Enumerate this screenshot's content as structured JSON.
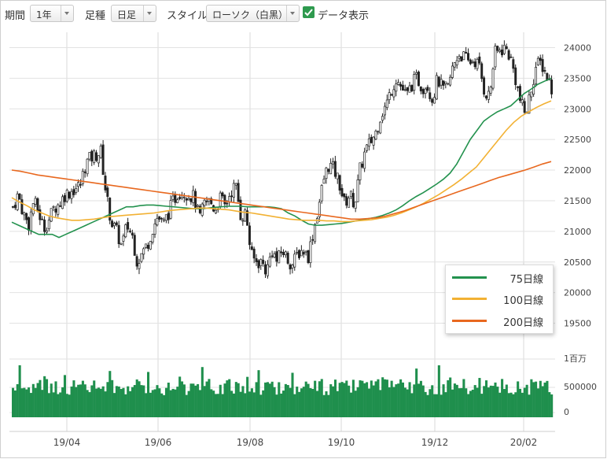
{
  "toolbar": {
    "period_label": "期間",
    "period_value": "1年",
    "candle_label": "足種",
    "candle_value": "日足",
    "style_label": "スタイル",
    "style_value": "ローソク（白黒）",
    "data_display_label": "データ表示",
    "data_display_checked": true
  },
  "chart_data": {
    "type": "candlestick",
    "x_tick_labels": [
      "19/04",
      "19/06",
      "19/08",
      "19/10",
      "19/12",
      "20/02"
    ],
    "price_axis": {
      "ticks": [
        19500,
        20000,
        20500,
        21000,
        21500,
        22000,
        22500,
        23000,
        23500,
        24000
      ],
      "range": [
        19250,
        24250
      ]
    },
    "volume_axis": {
      "tick_labels": [
        "1百万",
        "500000",
        "0"
      ]
    },
    "price_close": [
      21400,
      21600,
      21300,
      21100,
      21500,
      21300,
      21050,
      21200,
      21400,
      21450,
      21600,
      21650,
      21700,
      21750,
      22100,
      22200,
      22250,
      22300,
      21600,
      21150,
      21000,
      20750,
      21100,
      20950,
      20500,
      20650,
      20800,
      21050,
      21250,
      21100,
      21300,
      21500,
      21650,
      21650,
      21600,
      21550,
      21200,
      21450,
      21500,
      21350,
      21550,
      21400,
      21650,
      21750,
      21250,
      21300,
      20600,
      20500,
      20500,
      20350,
      20700,
      20500,
      20700,
      20550,
      20450,
      20650,
      20700,
      20600,
      21000,
      21400,
      21850,
      22100,
      22000,
      21800,
      21450,
      21600,
      21450,
      22000,
      22300,
      22450,
      22600,
      22900,
      23050,
      23300,
      23500,
      23350,
      23200,
      23400,
      23500,
      23350,
      23400,
      23150,
      23500,
      23300,
      23350,
      23700,
      23900,
      23850,
      23750,
      23800,
      23700,
      23300,
      23200,
      23900,
      23950,
      24000,
      23850,
      23500,
      23100,
      22900,
      23300,
      23700,
      23750,
      23550,
      23350
    ],
    "series": [
      {
        "name": "75日線",
        "color": "#23924e",
        "values": [
          21150,
          21100,
          21050,
          21000,
          20950,
          20950,
          20950,
          20900,
          20950,
          21000,
          21050,
          21100,
          21150,
          21200,
          21250,
          21300,
          21350,
          21400,
          21400,
          21420,
          21430,
          21430,
          21420,
          21410,
          21400,
          21390,
          21380,
          21370,
          21370,
          21380,
          21390,
          21400,
          21410,
          21410,
          21410,
          21400,
          21400,
          21400,
          21400,
          21390,
          21370,
          21300,
          21250,
          21180,
          21120,
          21100,
          21100,
          21110,
          21120,
          21130,
          21150,
          21170,
          21190,
          21210,
          21230,
          21260,
          21300,
          21350,
          21420,
          21500,
          21570,
          21630,
          21700,
          21770,
          21850,
          21950,
          22100,
          22300,
          22500,
          22650,
          22800,
          22880,
          22950,
          23000,
          23050,
          23150,
          23250,
          23320,
          23400,
          23450,
          23500
        ]
      },
      {
        "name": "100日線",
        "color": "#f2b133",
        "values": [
          21550,
          21480,
          21420,
          21350,
          21300,
          21250,
          21220,
          21200,
          21180,
          21180,
          21190,
          21200,
          21220,
          21240,
          21250,
          21260,
          21270,
          21280,
          21290,
          21300,
          21320,
          21340,
          21350,
          21360,
          21370,
          21380,
          21380,
          21370,
          21360,
          21350,
          21330,
          21310,
          21300,
          21280,
          21260,
          21240,
          21220,
          21200,
          21190,
          21180,
          21180,
          21180,
          21170,
          21170,
          21160,
          21160,
          21170,
          21180,
          21190,
          21210,
          21230,
          21260,
          21300,
          21350,
          21400,
          21460,
          21530,
          21600,
          21680,
          21760,
          21850,
          21950,
          22050,
          22200,
          22350,
          22500,
          22650,
          22780,
          22880,
          22950,
          23020,
          23080,
          23130
        ]
      },
      {
        "name": "200日線",
        "color": "#e8681f",
        "values": [
          22000,
          21980,
          21950,
          21920,
          21900,
          21880,
          21860,
          21840,
          21820,
          21800,
          21780,
          21760,
          21740,
          21720,
          21700,
          21680,
          21660,
          21640,
          21620,
          21600,
          21580,
          21560,
          21540,
          21520,
          21500,
          21480,
          21460,
          21440,
          21420,
          21400,
          21380,
          21360,
          21340,
          21320,
          21300,
          21280,
          21260,
          21240,
          21220,
          21200,
          21200,
          21210,
          21220,
          21250,
          21290,
          21330,
          21380,
          21430,
          21480,
          21530,
          21580,
          21630,
          21680,
          21730,
          21780,
          21830,
          21880,
          21920,
          21960,
          22000,
          22050,
          22100,
          22140
        ]
      }
    ],
    "volume_scale_max": 1000000,
    "legend_position": "bottom-right",
    "grid": true
  }
}
